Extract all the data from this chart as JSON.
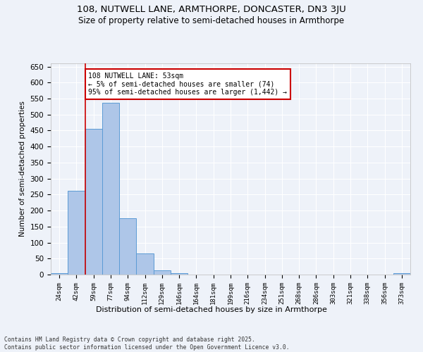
{
  "title1": "108, NUTWELL LANE, ARMTHORPE, DONCASTER, DN3 3JU",
  "title2": "Size of property relative to semi-detached houses in Armthorpe",
  "xlabel": "Distribution of semi-detached houses by size in Armthorpe",
  "ylabel": "Number of semi-detached properties",
  "categories": [
    "24sqm",
    "42sqm",
    "59sqm",
    "77sqm",
    "94sqm",
    "112sqm",
    "129sqm",
    "146sqm",
    "164sqm",
    "181sqm",
    "199sqm",
    "216sqm",
    "234sqm",
    "251sqm",
    "268sqm",
    "286sqm",
    "303sqm",
    "321sqm",
    "338sqm",
    "356sqm",
    "373sqm"
  ],
  "values": [
    5,
    262,
    455,
    537,
    175,
    66,
    14,
    5,
    0,
    0,
    0,
    0,
    0,
    0,
    0,
    0,
    0,
    0,
    0,
    0,
    5
  ],
  "bar_color": "#aec6e8",
  "bar_edge_color": "#5b9bd5",
  "property_label": "108 NUTWELL LANE: 53sqm",
  "pct_smaller": 5,
  "n_smaller": 74,
  "pct_larger": 95,
  "n_larger": 1442,
  "vline_color": "#cc0000",
  "annotation_box_color": "#cc0000",
  "ylim": [
    0,
    660
  ],
  "yticks": [
    0,
    50,
    100,
    150,
    200,
    250,
    300,
    350,
    400,
    450,
    500,
    550,
    600,
    650
  ],
  "bg_color": "#eef2f9",
  "grid_color": "#ffffff",
  "footer": "Contains HM Land Registry data © Crown copyright and database right 2025.\nContains public sector information licensed under the Open Government Licence v3.0."
}
